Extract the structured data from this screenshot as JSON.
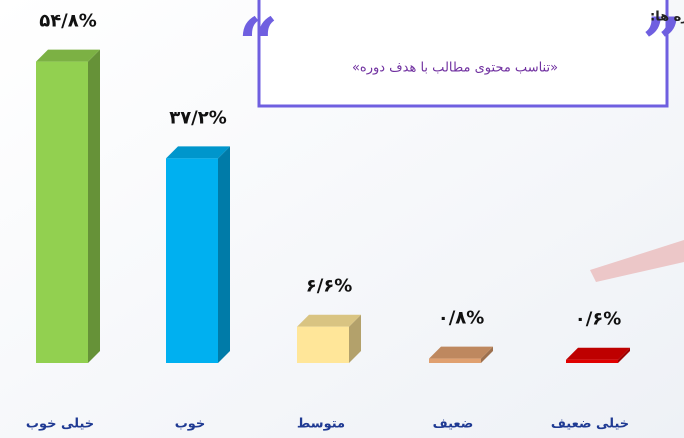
{
  "chart_data": {
    "type": "bar3d",
    "title": "نمونه ای از اطلاعات اثربخشی سطح اول دوره ها:",
    "subtitle": "«تناسب محتوی مطالب با هدف دوره»",
    "categories": [
      "خیلی خوب",
      "خوب",
      "متوسط",
      "ضعیف",
      "خیلی ضعیف"
    ],
    "values": [
      54.8,
      37.2,
      6.6,
      0.8,
      0.6
    ],
    "value_labels": [
      "۵۴/۸%",
      "۳۷/۲%",
      "۶/۶%",
      "۰/۸%",
      "۰/۶%"
    ],
    "colors": [
      "#92d050",
      "#00b0f0",
      "#ffe699",
      "#e0a070",
      "#e00000"
    ]
  }
}
